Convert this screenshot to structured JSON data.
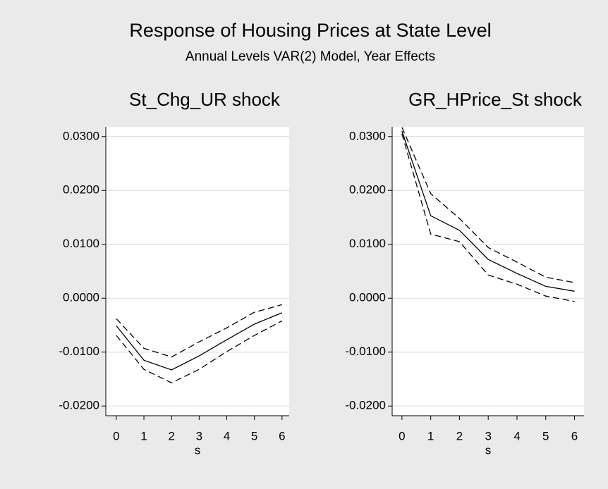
{
  "title": "Response of Housing Prices at State Level",
  "subtitle": "Annual Levels VAR(2) Model, Year Effects",
  "chart_data": [
    {
      "type": "line",
      "title": "St_Chg_UR shock",
      "xlabel": "s",
      "x": [
        0,
        1,
        2,
        3,
        4,
        5,
        6
      ],
      "xlim": [
        -0.38,
        6.26
      ],
      "xticks": [
        0,
        1,
        2,
        3,
        4,
        5,
        6
      ],
      "ylim": [
        -0.0218,
        0.0318
      ],
      "yticks": [
        {
          "value": -0.02,
          "label": "-0.0200"
        },
        {
          "value": -0.01,
          "label": "-0.0100"
        },
        {
          "value": 0,
          "label": "0.0000"
        },
        {
          "value": 0.01,
          "label": "0.0100"
        },
        {
          "value": 0.02,
          "label": "0.0200"
        },
        {
          "value": 0.03,
          "label": "0.0300"
        }
      ],
      "grid": true,
      "series": [
        {
          "color": "#000000",
          "dash": true,
          "values": [
            -0.0069,
            -0.0132,
            -0.0157,
            -0.0132,
            -0.0099,
            -0.0069,
            -0.0042
          ]
        },
        {
          "color": "#000000",
          "dash": false,
          "values": [
            -0.0051,
            -0.0115,
            -0.0133,
            -0.0107,
            -0.0077,
            -0.0048,
            -0.0027
          ]
        },
        {
          "color": "#000000",
          "dash": true,
          "values": [
            -0.0038,
            -0.0093,
            -0.0109,
            -0.0081,
            -0.0055,
            -0.0026,
            -0.0012
          ]
        }
      ]
    },
    {
      "type": "line",
      "title": "GR_HPrice_St shock",
      "xlabel": "s",
      "x": [
        0,
        1,
        2,
        3,
        4,
        5,
        6
      ],
      "xlim": [
        -0.34,
        6.33
      ],
      "xticks": [
        0,
        1,
        2,
        3,
        4,
        5,
        6
      ],
      "ylim": [
        -0.0218,
        0.0318
      ],
      "yticks": [
        {
          "value": -0.02,
          "label": "-0.0200"
        },
        {
          "value": -0.01,
          "label": "-0.0100"
        },
        {
          "value": 0,
          "label": "0.0000"
        },
        {
          "value": 0.01,
          "label": "0.0100"
        },
        {
          "value": 0.02,
          "label": "0.0200"
        },
        {
          "value": 0.03,
          "label": "0.0300"
        }
      ],
      "grid": true,
      "series": [
        {
          "color": "#000000",
          "dash": true,
          "values": [
            0.0305,
            0.0119,
            0.0105,
            0.0043,
            0.0026,
            0.0004,
            -0.0006
          ]
        },
        {
          "color": "#000000",
          "dash": false,
          "values": [
            0.031,
            0.0153,
            0.0126,
            0.0072,
            0.0046,
            0.0022,
            0.0013
          ]
        },
        {
          "color": "#000000",
          "dash": true,
          "values": [
            0.0317,
            0.0194,
            0.0148,
            0.0094,
            0.0067,
            0.0039,
            0.0029
          ]
        }
      ]
    }
  ]
}
